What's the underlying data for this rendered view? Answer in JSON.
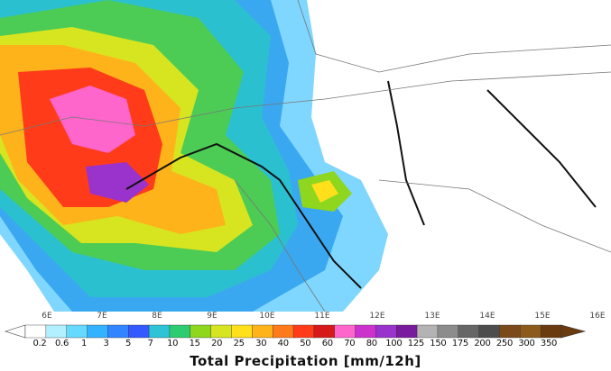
{
  "map": {
    "longitude_labels": [
      "6E",
      "7E",
      "8E",
      "9E",
      "10E",
      "11E",
      "12E",
      "13E",
      "14E",
      "15E",
      "16E"
    ],
    "region": "Alps / Ligurian Sea / Northern Italy"
  },
  "legend": {
    "title": "Total Precipitation [mm/12h]",
    "tick_labels": [
      "0.2",
      "0.6",
      "1",
      "3",
      "5",
      "7",
      "10",
      "15",
      "20",
      "25",
      "30",
      "40",
      "50",
      "60",
      "70",
      "80",
      "100",
      "125",
      "150",
      "175",
      "200",
      "250",
      "300",
      "350"
    ],
    "colors": [
      "#ffffff",
      "#b3f0ff",
      "#66d9ff",
      "#33b3ff",
      "#3385ff",
      "#3359ff",
      "#2ec4d6",
      "#2ecc71",
      "#8fd61f",
      "#d6e51f",
      "#ffe01a",
      "#ffb31a",
      "#ff7a1a",
      "#ff3b1a",
      "#d61a1a",
      "#ff66cc",
      "#cc33cc",
      "#9933cc",
      "#7a1a9e",
      "#b3b3b3",
      "#8c8c8c",
      "#666666",
      "#4d4d4d",
      "#7a4a1a",
      "#8c5a1a",
      "#6b3b10"
    ]
  }
}
